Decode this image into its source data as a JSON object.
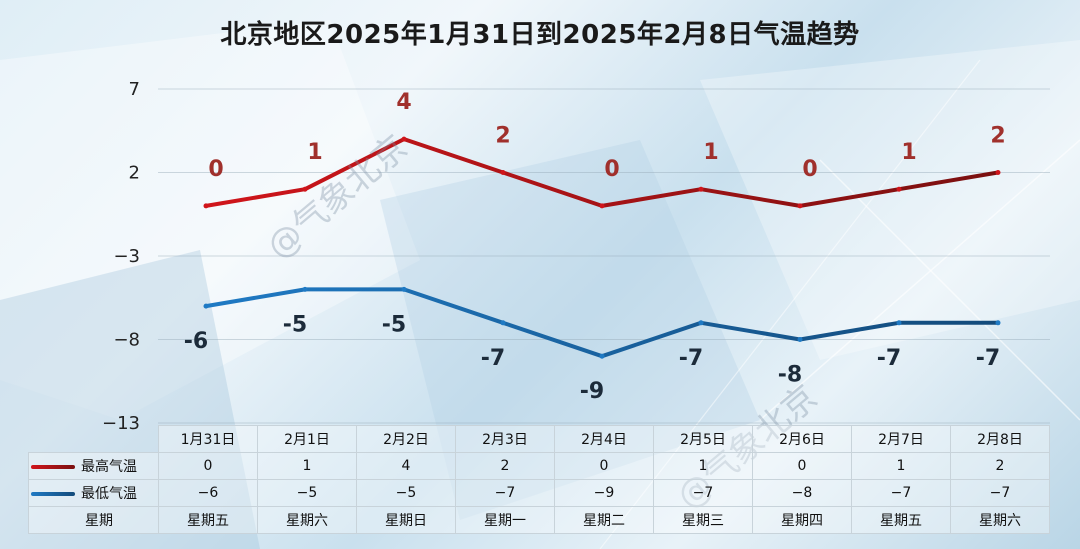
{
  "title": "北京地区2025年1月31日到2025年2月8日气温趋势",
  "watermark": "@气象北京",
  "chart_data": {
    "type": "line",
    "title": "北京地区2025年1月31日到2025年2月8日气温趋势",
    "categories": [
      "1月31日",
      "2月1日",
      "2月2日",
      "2月3日",
      "2月4日",
      "2月5日",
      "2月6日",
      "2月7日",
      "2月8日"
    ],
    "weekdays": [
      "星期五",
      "星期六",
      "星期日",
      "星期一",
      "星期二",
      "星期三",
      "星期四",
      "星期五",
      "星期六"
    ],
    "series": [
      {
        "name": "最高气温",
        "values": [
          0,
          1,
          4,
          2,
          0,
          1,
          0,
          1,
          2
        ],
        "color": "#d0151b",
        "colorEnd": "#7a1010"
      },
      {
        "name": "最低气温",
        "values": [
          -6,
          -5,
          -5,
          -7,
          -9,
          -7,
          -8,
          -7,
          -7
        ],
        "color": "#1f7ac4",
        "colorEnd": "#134a7a"
      }
    ],
    "yticks": [
      "7",
      "2",
      "−3",
      "−8",
      "−13"
    ],
    "ylim": [
      -13,
      7
    ],
    "grid": true,
    "table_rows": [
      {
        "label": "最高气温",
        "values": [
          "0",
          "1",
          "4",
          "2",
          "0",
          "1",
          "0",
          "1",
          "2"
        ]
      },
      {
        "label": "最低气温",
        "values": [
          "−6",
          "−5",
          "−5",
          "−7",
          "−9",
          "−7",
          "−8",
          "−7",
          "−7"
        ]
      }
    ],
    "weekday_row_label": "星期",
    "legend": "table"
  }
}
